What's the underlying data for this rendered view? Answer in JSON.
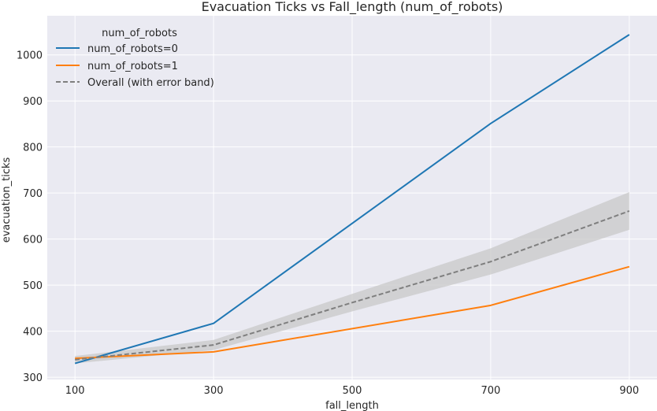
{
  "chart_data": {
    "type": "line",
    "title": "Evacuation Ticks vs Fall_length (num_of_robots)",
    "xlabel": "fall_length",
    "ylabel": "evacuation_ticks",
    "x": [
      100,
      300,
      500,
      700,
      900
    ],
    "x_ticks": [
      "100",
      "300",
      "500",
      "700",
      "900"
    ],
    "y_ticks": [
      "300",
      "400",
      "500",
      "600",
      "700",
      "800",
      "900",
      "1000"
    ],
    "xlim": [
      60,
      940
    ],
    "ylim": [
      295,
      1085
    ],
    "grid": true,
    "legend": {
      "title": "num_of_robots",
      "placement": "top-left",
      "entries": [
        "num_of_robots=0",
        "num_of_robots=1",
        "Overall (with error band)"
      ]
    },
    "series": [
      {
        "name": "num_of_robots=0",
        "color": "#1f77b4",
        "style": "solid",
        "values": [
          330,
          417,
          null,
          851,
          1044
        ]
      },
      {
        "name": "num_of_robots=1",
        "color": "#ff7f0e",
        "style": "solid",
        "values": [
          341,
          355,
          null,
          456,
          540
        ]
      },
      {
        "name": "Overall (with error band)",
        "color": "#7f7f7f",
        "style": "dashed",
        "points": [
          [
            100,
            338
          ],
          [
            300,
            370
          ],
          [
            500,
            462
          ],
          [
            700,
            551
          ],
          [
            900,
            661
          ]
        ],
        "band_lower": [
          330,
          359,
          443,
          523,
          620
        ],
        "band_upper": [
          346,
          381,
          481,
          580,
          702
        ],
        "band_color": "#c8c8c8"
      }
    ]
  }
}
